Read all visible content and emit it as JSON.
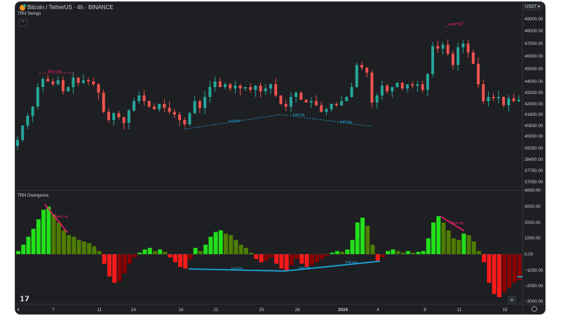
{
  "header": {
    "symbol_title": "Bitcoin / TetherUS · 4h · BINANCE",
    "currency": "USDT"
  },
  "panes": {
    "price_title": "TRN Swings",
    "osc_title": "TRN Divergence"
  },
  "colors": {
    "up": "#26a69a",
    "down": "#ef5350",
    "bg": "#1e1f22",
    "bear": "#e91e63",
    "bull": "#1ea7e1",
    "hist_pos_rise": "#22e01a",
    "hist_pos_fall": "#4e7d00",
    "hist_neg_fall": "#ff1a1a",
    "hist_neg_rise": "#8b0000"
  },
  "chart_data": [
    {
      "type": "candlestick",
      "title": "Bitcoin / TetherUS · 4h · BINANCE",
      "y_ticks": [
        "49000.00",
        "48000.00",
        "47000.00",
        "46000.00",
        "45000.00",
        "44000.00",
        "43200.00",
        "42400.00",
        "41600.00",
        "40800.00",
        "40050.00",
        "39250.00",
        "38450.00",
        "37750.00",
        "37050.00"
      ],
      "x_ticks": [
        "4",
        "7",
        "11",
        "14",
        "18",
        "21",
        "25",
        "28",
        "2024",
        "4",
        "8",
        "11",
        "15"
      ],
      "closes": [
        39800,
        40800,
        41500,
        42200,
        43600,
        44200,
        44000,
        43800,
        44100,
        43300,
        43600,
        44300,
        43900,
        44100,
        44000,
        43800,
        43200,
        41800,
        41200,
        41700,
        41400,
        41000,
        41900,
        42600,
        43000,
        42600,
        42200,
        42000,
        42400,
        42100,
        41800,
        41600,
        41200,
        40900,
        41700,
        42600,
        42100,
        42900,
        43600,
        44000,
        43600,
        43800,
        43500,
        43700,
        43500,
        43600,
        43400,
        43700,
        43300,
        43500,
        43800,
        43000,
        42400,
        42200,
        42900,
        43200,
        42700,
        42500,
        42600,
        42300,
        41800,
        42000,
        42400,
        42300,
        42600,
        42900,
        43600,
        45300,
        45100,
        44700,
        42500,
        43000,
        43700,
        43300,
        43600,
        43900,
        43500,
        43800,
        43700,
        43800,
        43400,
        44600,
        46800,
        46600,
        46900,
        46200,
        45300,
        46700,
        47000,
        46300,
        45400,
        43800,
        42600,
        42900,
        42800,
        42900,
        42300,
        42800,
        42600,
        42700
      ],
      "annotations": [
        {
          "label": "bear reg",
          "kind": "bear"
        },
        {
          "label": "bear reg",
          "kind": "bear"
        },
        {
          "label": "bull hid",
          "kind": "bull"
        },
        {
          "label": "bull reg",
          "kind": "bull"
        },
        {
          "label": "bull reg",
          "kind": "bull"
        }
      ]
    },
    {
      "type": "bar",
      "title": "TRN Divergence",
      "y_ticks": [
        "4000.00",
        "3000.00",
        "2000.00",
        "1000.00",
        "0.00",
        "−1000.00",
        "−2000.00",
        "−3000.00"
      ],
      "values": [
        200,
        600,
        1100,
        1600,
        2200,
        2800,
        3000,
        2500,
        2000,
        1500,
        1200,
        1100,
        900,
        800,
        700,
        500,
        200,
        -600,
        -1400,
        -1800,
        -1700,
        -1200,
        -600,
        -200,
        100,
        300,
        400,
        200,
        300,
        150,
        -200,
        -500,
        -800,
        -900,
        -300,
        400,
        200,
        600,
        1100,
        1400,
        1500,
        1300,
        1200,
        900,
        600,
        400,
        100,
        -300,
        -500,
        -400,
        -200,
        -600,
        -900,
        -1000,
        -700,
        -300,
        -600,
        -800,
        -700,
        -500,
        -300,
        -100,
        100,
        200,
        150,
        300,
        900,
        2000,
        2300,
        1800,
        600,
        -400,
        -200,
        200,
        300,
        200,
        100,
        200,
        100,
        150,
        200,
        1000,
        2000,
        2400,
        2000,
        1500,
        1000,
        900,
        1300,
        1200,
        800,
        200,
        -500,
        -1800,
        -2500,
        -2700,
        -2400,
        -2100,
        -1800,
        -1600
      ],
      "annotations": [
        {
          "label": "bear reg",
          "kind": "bear"
        },
        {
          "label": "bear reg",
          "kind": "bear"
        },
        {
          "label": "bull hid",
          "kind": "bull"
        },
        {
          "label": "bull reg",
          "kind": "bull"
        },
        {
          "label": "bull reg",
          "kind": "bull"
        }
      ]
    }
  ],
  "footer": {
    "logo": "TV",
    "scroll_label": "»"
  }
}
